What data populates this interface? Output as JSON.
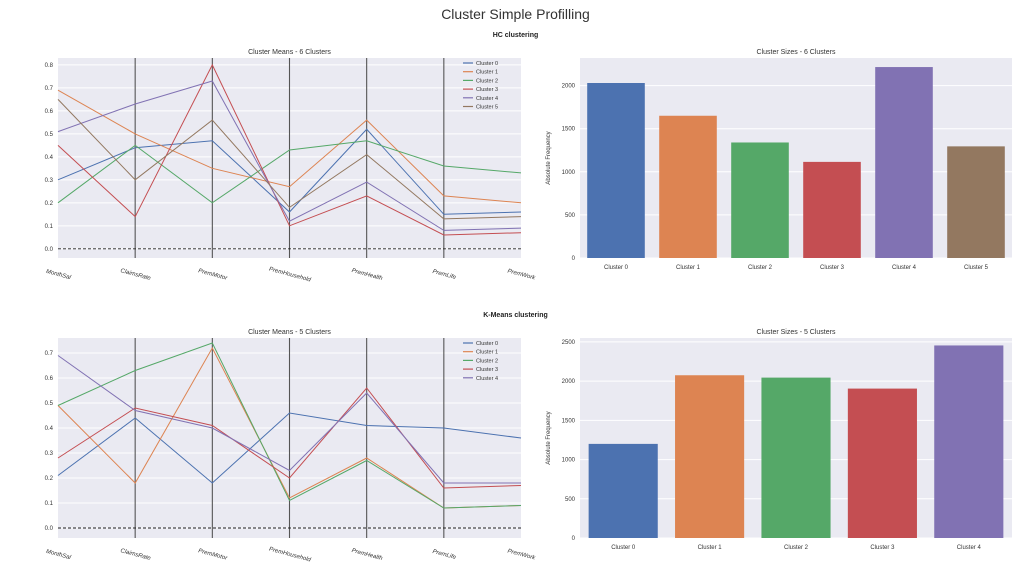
{
  "title": "Cluster Simple Profilling",
  "sections": [
    {
      "title": "HC clustering"
    },
    {
      "title": "K-Means clustering"
    }
  ],
  "colors": [
    "#4c72b0",
    "#dd8452",
    "#55a868",
    "#c44e52",
    "#8172b3",
    "#937860"
  ],
  "chart_data": [
    {
      "type": "line",
      "subtype": "parallel-coordinates",
      "title": "Cluster Means - 6 Clusters",
      "categories": [
        "MonthSal",
        "ClaimsRate",
        "PremMotor",
        "PremHousehold",
        "PremHealth",
        "PremLife",
        "PremWork"
      ],
      "ylim": [
        -0.04,
        0.83
      ],
      "yticks": [
        0.0,
        0.1,
        0.2,
        0.3,
        0.4,
        0.5,
        0.6,
        0.7,
        0.8
      ],
      "ytick_labels": [
        "0.0",
        "0.1",
        "0.2",
        "0.3",
        "0.4",
        "0.5",
        "0.6",
        "0.7",
        "0.8"
      ],
      "hline": 0.0,
      "legend": "top-right",
      "series": [
        {
          "name": "Cluster 0",
          "values": [
            0.3,
            0.44,
            0.47,
            0.16,
            0.52,
            0.15,
            0.16
          ]
        },
        {
          "name": "Cluster 1",
          "values": [
            0.69,
            0.5,
            0.35,
            0.27,
            0.56,
            0.23,
            0.2
          ]
        },
        {
          "name": "Cluster 2",
          "values": [
            0.2,
            0.45,
            0.2,
            0.43,
            0.47,
            0.36,
            0.33
          ]
        },
        {
          "name": "Cluster 3",
          "values": [
            0.45,
            0.14,
            0.8,
            0.1,
            0.23,
            0.06,
            0.07
          ]
        },
        {
          "name": "Cluster 4",
          "values": [
            0.51,
            0.63,
            0.73,
            0.12,
            0.29,
            0.08,
            0.09
          ]
        },
        {
          "name": "Cluster 5",
          "values": [
            0.65,
            0.3,
            0.56,
            0.18,
            0.41,
            0.13,
            0.14
          ]
        }
      ]
    },
    {
      "type": "bar",
      "title": "Cluster Sizes - 6 Clusters",
      "ylabel": "Absolute Frequency",
      "categories": [
        "Cluster 0",
        "Cluster 1",
        "Cluster 2",
        "Cluster 3",
        "Cluster 4",
        "Cluster 5"
      ],
      "values": [
        2030,
        1650,
        1340,
        1115,
        2215,
        1295
      ],
      "ylim": [
        0,
        2320
      ],
      "yticks": [
        0,
        500,
        1000,
        1500,
        2000
      ],
      "ytick_labels": [
        "0",
        "500",
        "1000",
        "1500",
        "2000"
      ]
    },
    {
      "type": "line",
      "subtype": "parallel-coordinates",
      "title": "Cluster Means - 5 Clusters",
      "categories": [
        "MonthSal",
        "ClaimsRate",
        "PremMotor",
        "PremHousehold",
        "PremHealth",
        "PremLife",
        "PremWork"
      ],
      "ylim": [
        -0.04,
        0.76
      ],
      "yticks": [
        0.0,
        0.1,
        0.2,
        0.3,
        0.4,
        0.5,
        0.6,
        0.7
      ],
      "ytick_labels": [
        "0.0",
        "0.1",
        "0.2",
        "0.3",
        "0.4",
        "0.5",
        "0.6",
        "0.7"
      ],
      "hline": 0.0,
      "legend": "top-right",
      "series": [
        {
          "name": "Cluster 0",
          "values": [
            0.21,
            0.44,
            0.18,
            0.46,
            0.41,
            0.4,
            0.36
          ]
        },
        {
          "name": "Cluster 1",
          "values": [
            0.49,
            0.18,
            0.72,
            0.12,
            0.28,
            0.08,
            0.09
          ]
        },
        {
          "name": "Cluster 2",
          "values": [
            0.49,
            0.63,
            0.74,
            0.11,
            0.27,
            0.08,
            0.09
          ]
        },
        {
          "name": "Cluster 3",
          "values": [
            0.28,
            0.48,
            0.41,
            0.2,
            0.56,
            0.16,
            0.17
          ]
        },
        {
          "name": "Cluster 4",
          "values": [
            0.69,
            0.47,
            0.4,
            0.23,
            0.54,
            0.18,
            0.18
          ]
        }
      ]
    },
    {
      "type": "bar",
      "title": "Cluster Sizes - 5 Clusters",
      "ylabel": "Absolute Frequency",
      "categories": [
        "Cluster 0",
        "Cluster 1",
        "Cluster 2",
        "Cluster 3",
        "Cluster 4"
      ],
      "values": [
        1200,
        2075,
        2045,
        1905,
        2455
      ],
      "ylim": [
        0,
        2550
      ],
      "yticks": [
        0,
        500,
        1000,
        1500,
        2000,
        2500
      ],
      "ytick_labels": [
        "0",
        "500",
        "1000",
        "1500",
        "2000",
        "2500"
      ]
    }
  ]
}
